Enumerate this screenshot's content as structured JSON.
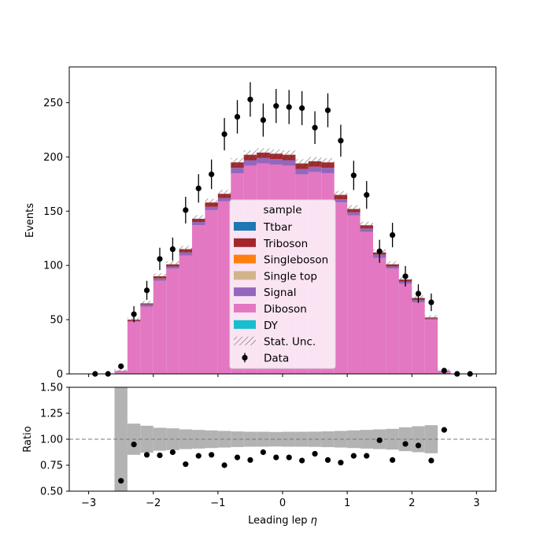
{
  "chart_data": [
    {
      "type": "stacked_histogram",
      "ylabel": "Events",
      "xlim": [
        -3.3,
        3.3
      ],
      "ylim": [
        0,
        283
      ],
      "yticks": [
        0,
        50,
        100,
        150,
        200,
        250
      ],
      "bin_edges": [
        -3.0,
        -2.8,
        -2.6,
        -2.4,
        -2.2,
        -2.0,
        -1.8,
        -1.6,
        -1.4,
        -1.2,
        -1.0,
        -0.8,
        -0.6,
        -0.4,
        -0.2,
        0.0,
        0.2,
        0.4,
        0.6,
        0.8,
        1.0,
        1.2,
        1.4,
        1.6,
        1.8,
        2.0,
        2.2,
        2.4,
        2.6,
        2.8,
        3.0
      ],
      "series": [
        {
          "name": "DY",
          "color": "#17becf",
          "values": [
            0,
            0,
            0,
            0,
            0,
            0,
            0,
            0,
            0,
            0,
            0,
            0,
            0,
            0,
            0,
            0,
            0,
            0,
            0,
            0,
            0,
            0,
            0,
            0,
            0,
            0,
            0,
            0,
            0,
            0
          ]
        },
        {
          "name": "Diboson",
          "color": "#e377c2",
          "values": [
            0,
            0,
            3,
            48,
            62,
            86,
            97,
            109,
            137,
            151,
            159,
            185,
            192,
            194,
            193,
            192,
            184,
            186,
            185,
            158,
            146,
            131,
            107,
            97,
            83,
            66,
            50,
            3,
            0,
            0
          ]
        },
        {
          "name": "Signal",
          "color": "#9467bd",
          "values": [
            0,
            0,
            0,
            1,
            2,
            2,
            2,
            3,
            3,
            3,
            3,
            5,
            5,
            5,
            5,
            5,
            5,
            5,
            5,
            3,
            3,
            3,
            3,
            2,
            2,
            2,
            1,
            0,
            0,
            0
          ]
        },
        {
          "name": "Single top",
          "color": "#d2b48c",
          "values": [
            0,
            0,
            0,
            0,
            0,
            0,
            0,
            0,
            0,
            0,
            0,
            0,
            0,
            0,
            0,
            0,
            0,
            0,
            0,
            0,
            0,
            0,
            0,
            0,
            0,
            0,
            0,
            0,
            0,
            0
          ]
        },
        {
          "name": "Singleboson",
          "color": "#ff7f0e",
          "values": [
            0,
            0,
            0,
            0,
            0,
            0,
            0,
            0,
            0,
            0,
            0,
            0,
            0,
            0,
            0,
            0,
            0,
            0,
            0,
            0,
            0,
            0,
            0,
            0,
            0,
            0,
            0,
            0,
            0,
            0
          ]
        },
        {
          "name": "Triboson",
          "color": "#a3262a",
          "values": [
            0,
            0,
            0,
            1,
            1,
            2,
            2,
            3,
            3,
            4,
            4,
            5,
            5,
            5,
            5,
            5,
            5,
            5,
            5,
            4,
            3,
            3,
            2,
            2,
            2,
            2,
            1,
            0,
            0,
            0
          ]
        },
        {
          "name": "Ttbar",
          "color": "#1f77b4",
          "values": [
            0,
            0,
            0,
            0,
            0,
            0,
            0,
            0,
            0,
            0,
            0,
            0,
            0,
            0,
            0,
            0,
            0,
            0,
            0,
            0,
            0,
            0,
            0,
            0,
            0,
            0,
            0,
            0,
            0,
            0
          ]
        }
      ],
      "unc_label": "Stat. Unc.",
      "data": {
        "name": "Data",
        "x": [
          -2.9,
          -2.7,
          -2.5,
          -2.3,
          -2.1,
          -1.9,
          -1.7,
          -1.5,
          -1.3,
          -1.1,
          -0.9,
          -0.7,
          -0.5,
          -0.3,
          -0.1,
          0.1,
          0.3,
          0.5,
          0.7,
          0.9,
          1.1,
          1.3,
          1.5,
          1.7,
          1.9,
          2.1,
          2.3,
          2.5,
          2.7,
          2.9
        ],
        "y": [
          0,
          0,
          7,
          55,
          77,
          106,
          115,
          151,
          171,
          184,
          221,
          237,
          253,
          234,
          247,
          246,
          245,
          227,
          243,
          215,
          183,
          165,
          113,
          128,
          90,
          74,
          66,
          3,
          0,
          0
        ],
        "err": [
          0,
          0,
          2.6,
          7.4,
          8.8,
          10.3,
          10.7,
          12.3,
          13.1,
          13.6,
          14.9,
          15.4,
          15.9,
          15.3,
          15.7,
          15.7,
          15.7,
          15.1,
          15.6,
          14.7,
          13.5,
          12.8,
          10.6,
          11.3,
          9.5,
          8.6,
          8.1,
          1.7,
          0,
          0
        ]
      },
      "legend": {
        "title": "sample",
        "entries": [
          "Ttbar",
          "Triboson",
          "Singleboson",
          "Single top",
          "Signal",
          "Diboson",
          "DY",
          "Stat. Unc.",
          "Data"
        ],
        "placement": "center"
      }
    },
    {
      "type": "scatter",
      "ylabel": "Ratio",
      "xlabel": "Leading lep $\\eta$",
      "xlim": [
        -3.3,
        3.3
      ],
      "ylim": [
        0.5,
        1.5
      ],
      "xticks": [
        -3,
        -2,
        -1,
        0,
        1,
        2,
        3
      ],
      "yticks": [
        0.5,
        0.75,
        1.0,
        1.25,
        1.5
      ],
      "reference_line": 1.0,
      "x": [
        -2.5,
        -2.3,
        -2.1,
        -1.9,
        -1.7,
        -1.5,
        -1.3,
        -1.1,
        -0.9,
        -0.7,
        -0.5,
        -0.3,
        -0.1,
        0.1,
        0.3,
        0.5,
        0.7,
        0.9,
        1.1,
        1.3,
        1.5,
        1.7,
        1.9,
        2.1,
        2.3,
        2.5
      ],
      "y": [
        0.6,
        0.95,
        0.85,
        0.845,
        0.875,
        0.76,
        0.84,
        0.85,
        0.75,
        0.825,
        0.8,
        0.875,
        0.825,
        0.825,
        0.795,
        0.86,
        0.8,
        0.775,
        0.84,
        0.84,
        0.99,
        0.8,
        0.955,
        0.94,
        0.795,
        1.09
      ],
      "unc_band_halfwidth": [
        0.62,
        0.15,
        0.13,
        0.11,
        0.105,
        0.095,
        0.09,
        0.085,
        0.08,
        0.075,
        0.072,
        0.072,
        0.07,
        0.072,
        0.072,
        0.073,
        0.076,
        0.08,
        0.085,
        0.09,
        0.095,
        0.1,
        0.115,
        0.125,
        0.135,
        0.0
      ]
    }
  ]
}
